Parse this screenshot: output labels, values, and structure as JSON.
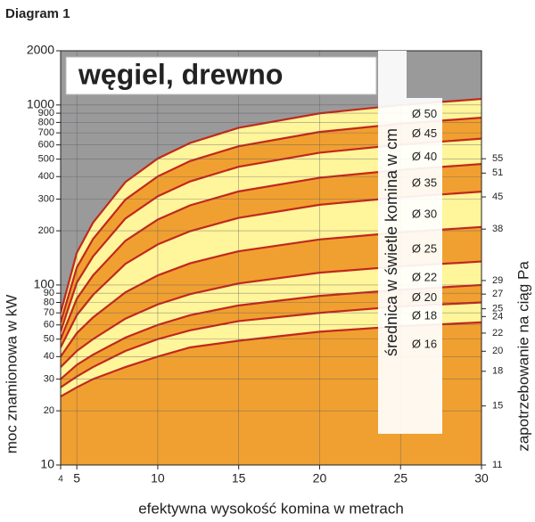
{
  "chart_data": {
    "type": "line",
    "title": "Diagram 1",
    "subtitle": "węgiel, drewno",
    "annotation": "średnica w świetle komina w cm",
    "x_label": "efektywna wysokość komina w metrach",
    "y_label": "moc znamionowa w kW",
    "y2_label": "zapotrzebowanie na ciąg Pa",
    "log_y": true,
    "log_y2": true,
    "grid": true,
    "curve_color": "#c0281e",
    "band_colors": [
      "#fff59a",
      "#f0a030"
    ],
    "x": [
      4,
      5,
      6,
      8,
      10,
      12,
      15,
      20,
      25,
      30
    ],
    "series": [
      {
        "values": [
          70,
          151,
          222,
          373,
          504,
          615,
          747,
          898,
          999,
          1080
        ]
      },
      {
        "values": [
          62,
          125,
          180,
          298,
          401,
          488,
          590,
          708,
          787,
          850
        ]
      },
      {
        "values": [
          55,
          103,
          144,
          234,
          311,
          376,
          454,
          543,
          602,
          650
        ]
      },
      {
        "values": [
          50,
          84,
          113,
          176,
          231,
          277,
          331,
          394,
          436,
          470
        ]
      },
      {
        "values": [
          45,
          68,
          88,
          131,
          168,
          199,
          236,
          279,
          307,
          330
        ]
      },
      {
        "values": [
          40,
          54,
          66,
          91,
          113,
          132,
          154,
          179,
          196,
          210
        ]
      },
      {
        "values": [
          35,
          43,
          50,
          65,
          78,
          89,
          102,
          117,
          127,
          135
        ]
      },
      {
        "values": [
          30,
          36,
          41,
          51,
          60,
          68,
          77,
          87,
          94,
          100
        ]
      },
      {
        "values": [
          27,
          31,
          35,
          43,
          50,
          56,
          63,
          70,
          76,
          80
        ]
      },
      {
        "values": [
          24,
          27,
          30,
          35,
          40,
          45,
          49,
          55,
          59,
          62
        ]
      }
    ],
    "band_labels": [
      "Ø 50",
      "Ø 45",
      "Ø 40",
      "Ø 35",
      "Ø 30",
      "Ø 25",
      "Ø 22",
      "Ø 20",
      "Ø 18",
      "Ø 16"
    ],
    "xlim": [
      4,
      30
    ],
    "xticks": [
      4,
      5,
      10,
      15,
      20,
      25,
      30
    ],
    "ylim": [
      10,
      2000
    ],
    "yticks": [
      10,
      20,
      30,
      40,
      50,
      60,
      70,
      80,
      90,
      100,
      200,
      300,
      400,
      500,
      600,
      700,
      800,
      900,
      1000,
      2000
    ],
    "y2lim": [
      11,
      97
    ],
    "y2ticks": [
      11,
      15,
      18,
      20,
      22,
      24,
      25,
      27,
      29,
      38,
      45,
      51,
      55
    ]
  }
}
